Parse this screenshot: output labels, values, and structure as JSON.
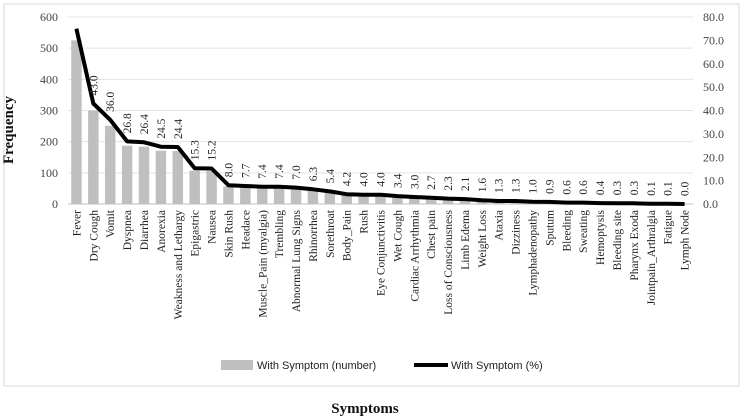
{
  "chart_data": {
    "type": "bar+line",
    "title": "",
    "xlabel": "Symptoms",
    "ylabel": "Frequency",
    "ylim": [
      0,
      600
    ],
    "y2lim": [
      0,
      80
    ],
    "yticks": [
      "0",
      "100",
      "200",
      "300",
      "400",
      "500",
      "600"
    ],
    "y2ticks": [
      "0.0",
      "10.0",
      "20.0",
      "30.0",
      "40.0",
      "50.0",
      "60.0",
      "70.0",
      "80.0"
    ],
    "grid": true,
    "legend_position": "bottom",
    "categories": [
      "Fever",
      "Dry Cough",
      "Vomit",
      "Dyspnea",
      "Diarrhea",
      "Anorexia",
      "Weakness and Lethargy",
      "Epigastric",
      "Nausea",
      "Skin Rush",
      "Headace",
      "Muscle_Pain (myalgia)",
      "Trembling",
      "Abnormal Lung Signs",
      "Rhinorrhea",
      "Sorethroat",
      "Body_Pain",
      "Rush",
      "Eye Conjunctivitis",
      "Wet Cough",
      "Cardiac Arrhythmia",
      "Chest pain",
      "Loss of Consciousness",
      "Limb Edema",
      "Weight Loss",
      "Ataxia",
      "Dizziness",
      "Lymphadenopathy",
      "Sputum",
      "Bleeding",
      "Sweating",
      "Hemoptysis",
      "Bleeding site",
      "Pharynx Exoda",
      "Jointpain_Arthralgia",
      "Fatigue",
      "Lymph Node"
    ],
    "series": [
      {
        "name": "With Symptom (number)",
        "type": "bar",
        "axis": "left",
        "color": "#bfbfbf",
        "values": [
          525,
          300,
          251,
          187,
          184,
          171,
          170,
          107,
          106,
          56,
          54,
          52,
          52,
          49,
          44,
          38,
          29,
          28,
          28,
          24,
          21,
          19,
          16,
          15,
          11,
          9,
          9,
          7,
          6,
          4,
          4,
          3,
          2,
          2,
          1,
          1,
          0
        ]
      },
      {
        "name": "With Symptom (%)",
        "type": "line",
        "axis": "right",
        "color": "#000000",
        "values": [
          75.0,
          43.0,
          36.0,
          26.8,
          26.4,
          24.5,
          24.4,
          15.3,
          15.2,
          8.0,
          7.7,
          7.4,
          7.4,
          7.0,
          6.3,
          5.4,
          4.2,
          4.0,
          4.0,
          3.4,
          3.0,
          2.7,
          2.3,
          2.1,
          1.6,
          1.3,
          1.3,
          1.0,
          0.9,
          0.6,
          0.6,
          0.4,
          0.3,
          0.3,
          0.1,
          0.1,
          0.0
        ],
        "data_labels": [
          "",
          "43.0",
          "36.0",
          "26.8",
          "26.4",
          "24.5",
          "24.4",
          "15.3",
          "15.2",
          "8.0",
          "7.7",
          "7.4",
          "7.4",
          "7.0",
          "6.3",
          "5.4",
          "4.2",
          "4.0",
          "4.0",
          "3.4",
          "3.0",
          "2.7",
          "2.3",
          "2.1",
          "1.6",
          "1.3",
          "1.3",
          "1.0",
          "0.9",
          "0.6",
          "0.6",
          "0.4",
          "0.3",
          "0.3",
          "0.1",
          "0.1",
          "0.0"
        ]
      }
    ]
  }
}
